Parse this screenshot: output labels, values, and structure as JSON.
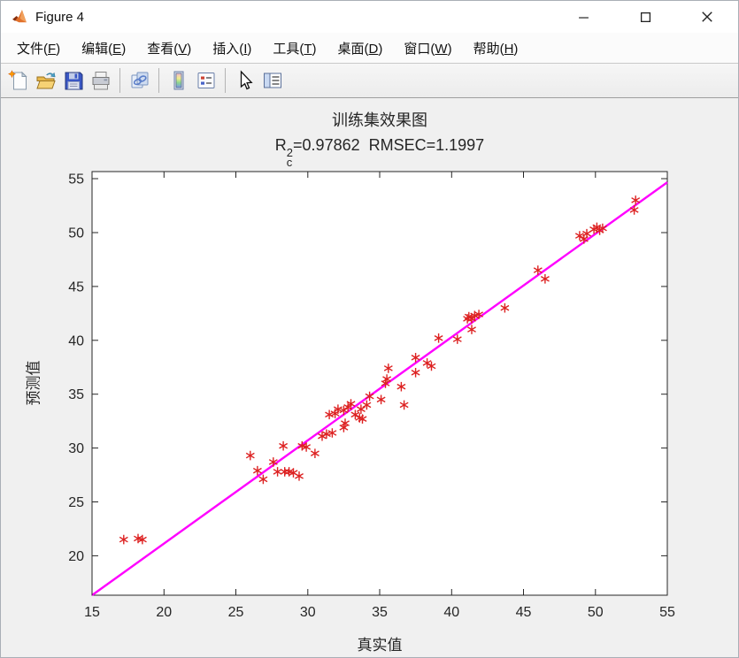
{
  "window": {
    "title": "Figure 4",
    "controls": [
      "minimize",
      "maximize",
      "close"
    ]
  },
  "menubar": {
    "items": [
      {
        "id": "file",
        "pre": "文件(",
        "accel": "F",
        "post": ")"
      },
      {
        "id": "edit",
        "pre": "编辑(",
        "accel": "E",
        "post": ")"
      },
      {
        "id": "view",
        "pre": "查看(",
        "accel": "V",
        "post": ")"
      },
      {
        "id": "insert",
        "pre": "插入(",
        "accel": "I",
        "post": ")"
      },
      {
        "id": "tools",
        "pre": "工具(",
        "accel": "T",
        "post": ")"
      },
      {
        "id": "desktop",
        "pre": "桌面(",
        "accel": "D",
        "post": ")"
      },
      {
        "id": "window",
        "pre": "窗口(",
        "accel": "W",
        "post": ")"
      },
      {
        "id": "help",
        "pre": "帮助(",
        "accel": "H",
        "post": ")"
      }
    ]
  },
  "toolbar": {
    "items": [
      "new-figure",
      "open-file",
      "save-figure",
      "print-figure",
      "separator",
      "link-plot",
      "separator",
      "insert-colorbar",
      "insert-legend",
      "separator",
      "edit-plot",
      "property-editor"
    ]
  },
  "chart_data": {
    "type": "scatter",
    "title": "训练集效果图",
    "subtitle": {
      "base": "R",
      "sup": "2",
      "sub": "c",
      "rest": "=0.97862  RMSEC=1.1997"
    },
    "r_squared_c": 0.97862,
    "rmsec": 1.1997,
    "xlabel": "真实值",
    "ylabel": "预测值",
    "xlim": [
      15,
      55
    ],
    "ylim": [
      16.34,
      55.66
    ],
    "xticks": [
      15,
      20,
      25,
      30,
      35,
      40,
      45,
      50,
      55
    ],
    "yticks": [
      20,
      25,
      30,
      35,
      40,
      45,
      50,
      55
    ],
    "grid": false,
    "marker": "asterisk",
    "marker_color": "#dd2222",
    "axis_color": "#262626",
    "fit_line": {
      "color": "#ff00ff",
      "x": [
        15,
        55
      ],
      "y": [
        16.34,
        54.67
      ]
    },
    "points": [
      [
        17.2,
        21.5
      ],
      [
        18.2,
        21.6
      ],
      [
        18.5,
        21.5
      ],
      [
        26.0,
        29.3
      ],
      [
        26.5,
        27.9
      ],
      [
        26.9,
        27.1
      ],
      [
        27.6,
        28.7
      ],
      [
        27.9,
        27.8
      ],
      [
        28.3,
        30.2
      ],
      [
        28.4,
        27.8
      ],
      [
        28.7,
        27.8
      ],
      [
        29.0,
        27.7
      ],
      [
        29.4,
        27.4
      ],
      [
        29.6,
        30.2
      ],
      [
        29.9,
        30.1
      ],
      [
        30.5,
        29.5
      ],
      [
        31.0,
        31.1
      ],
      [
        31.3,
        31.3
      ],
      [
        31.7,
        31.4
      ],
      [
        31.5,
        33.1
      ],
      [
        31.9,
        33.2
      ],
      [
        32.1,
        33.6
      ],
      [
        32.5,
        33.5
      ],
      [
        32.5,
        31.9
      ],
      [
        32.6,
        32.3
      ],
      [
        32.8,
        33.8
      ],
      [
        33.0,
        34.1
      ],
      [
        33.3,
        33.1
      ],
      [
        33.6,
        32.8
      ],
      [
        33.8,
        32.7
      ],
      [
        33.7,
        33.6
      ],
      [
        34.1,
        34.0
      ],
      [
        34.3,
        34.8
      ],
      [
        35.1,
        34.5
      ],
      [
        35.4,
        36.0
      ],
      [
        35.5,
        36.4
      ],
      [
        35.6,
        37.4
      ],
      [
        36.5,
        35.7
      ],
      [
        36.7,
        34.0
      ],
      [
        37.5,
        38.4
      ],
      [
        37.5,
        37.0
      ],
      [
        38.3,
        37.9
      ],
      [
        38.6,
        37.6
      ],
      [
        39.1,
        40.2
      ],
      [
        40.4,
        40.1
      ],
      [
        41.1,
        42.0
      ],
      [
        41.2,
        42.2
      ],
      [
        41.4,
        42.0
      ],
      [
        41.6,
        42.3
      ],
      [
        41.9,
        42.4
      ],
      [
        41.4,
        41.0
      ],
      [
        43.7,
        43.0
      ],
      [
        46.0,
        46.5
      ],
      [
        46.5,
        45.7
      ],
      [
        48.9,
        49.7
      ],
      [
        49.2,
        49.4
      ],
      [
        49.4,
        49.9
      ],
      [
        49.9,
        50.3
      ],
      [
        50.1,
        50.5
      ],
      [
        50.3,
        50.2
      ],
      [
        50.5,
        50.4
      ],
      [
        52.7,
        52.1
      ],
      [
        52.8,
        53.0
      ]
    ]
  }
}
